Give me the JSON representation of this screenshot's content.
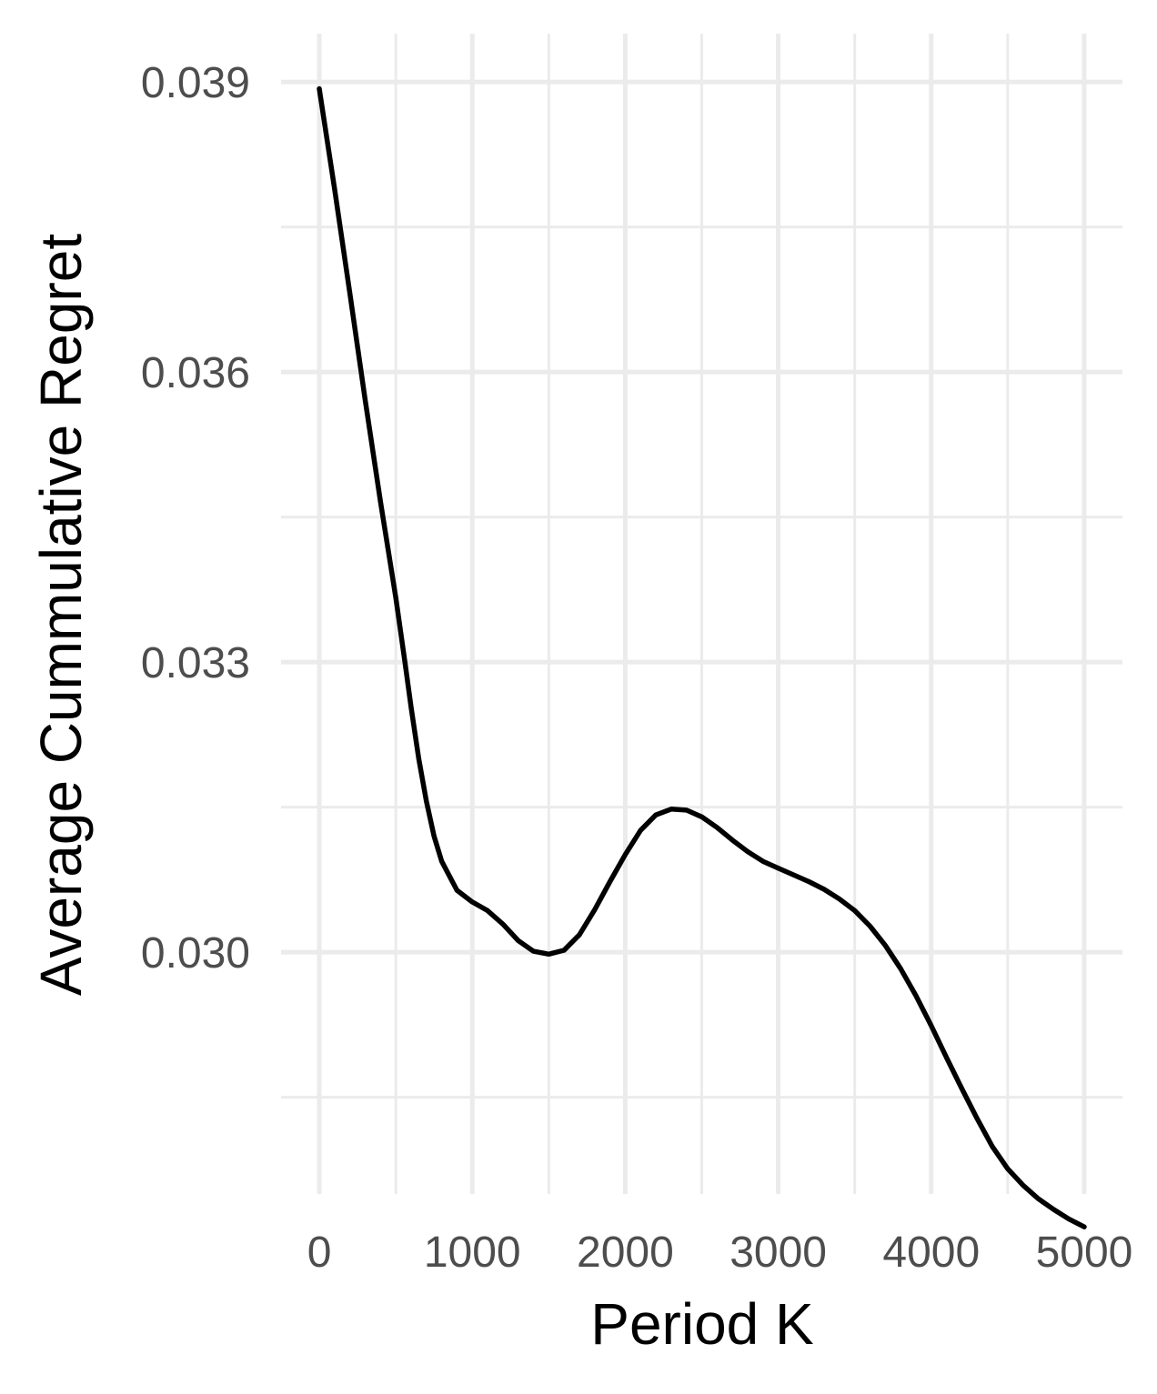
{
  "chart_data": {
    "type": "line",
    "title": "",
    "xlabel": "Period K",
    "ylabel": "Average Cummulative Regret",
    "xlim": [
      -250,
      5250
    ],
    "ylim": [
      0.0275,
      0.0395
    ],
    "x_ticks": [
      0,
      1000,
      2000,
      3000,
      4000,
      5000
    ],
    "x_tick_labels": [
      "0",
      "1000",
      "2000",
      "3000",
      "4000",
      "5000"
    ],
    "x_minor_ticks": [
      500,
      1500,
      2500,
      3500,
      4500
    ],
    "y_ticks": [
      0.03,
      0.033,
      0.036,
      0.039
    ],
    "y_tick_labels": [
      "0.030",
      "0.033",
      "0.036",
      "0.039"
    ],
    "y_minor_ticks": [
      0.0285,
      0.0315,
      0.0345,
      0.0375
    ],
    "grid": true,
    "legend": "none",
    "series": [
      {
        "color": "#000000",
        "x": [
          0,
          100,
          200,
          300,
          400,
          500,
          560,
          600,
          650,
          700,
          750,
          800,
          900,
          1000,
          1100,
          1200,
          1300,
          1400,
          1500,
          1600,
          1700,
          1800,
          1900,
          2000,
          2100,
          2200,
          2300,
          2400,
          2500,
          2600,
          2700,
          2800,
          2900,
          3000,
          3100,
          3200,
          3300,
          3400,
          3500,
          3600,
          3700,
          3800,
          3900,
          4000,
          4100,
          4200,
          4300,
          4400,
          4500,
          4600,
          4700,
          4800,
          4900,
          5000
        ],
        "y": [
          0.03893,
          0.03789,
          0.03681,
          0.03571,
          0.03466,
          0.03367,
          0.033,
          0.03253,
          0.032,
          0.03156,
          0.0312,
          0.03094,
          0.03064,
          0.03052,
          0.03043,
          0.03029,
          0.03012,
          0.03001,
          0.02998,
          0.03002,
          0.03018,
          0.03044,
          0.03073,
          0.03101,
          0.03126,
          0.03142,
          0.03148,
          0.03147,
          0.0314,
          0.03129,
          0.03116,
          0.03104,
          0.03094,
          0.03087,
          0.0308,
          0.03073,
          0.03065,
          0.03055,
          0.03043,
          0.03027,
          0.03007,
          0.02983,
          0.02955,
          0.02924,
          0.02891,
          0.02859,
          0.02828,
          0.02799,
          0.02776,
          0.02759,
          0.02745,
          0.02734,
          0.02724,
          0.02716
        ]
      }
    ]
  }
}
